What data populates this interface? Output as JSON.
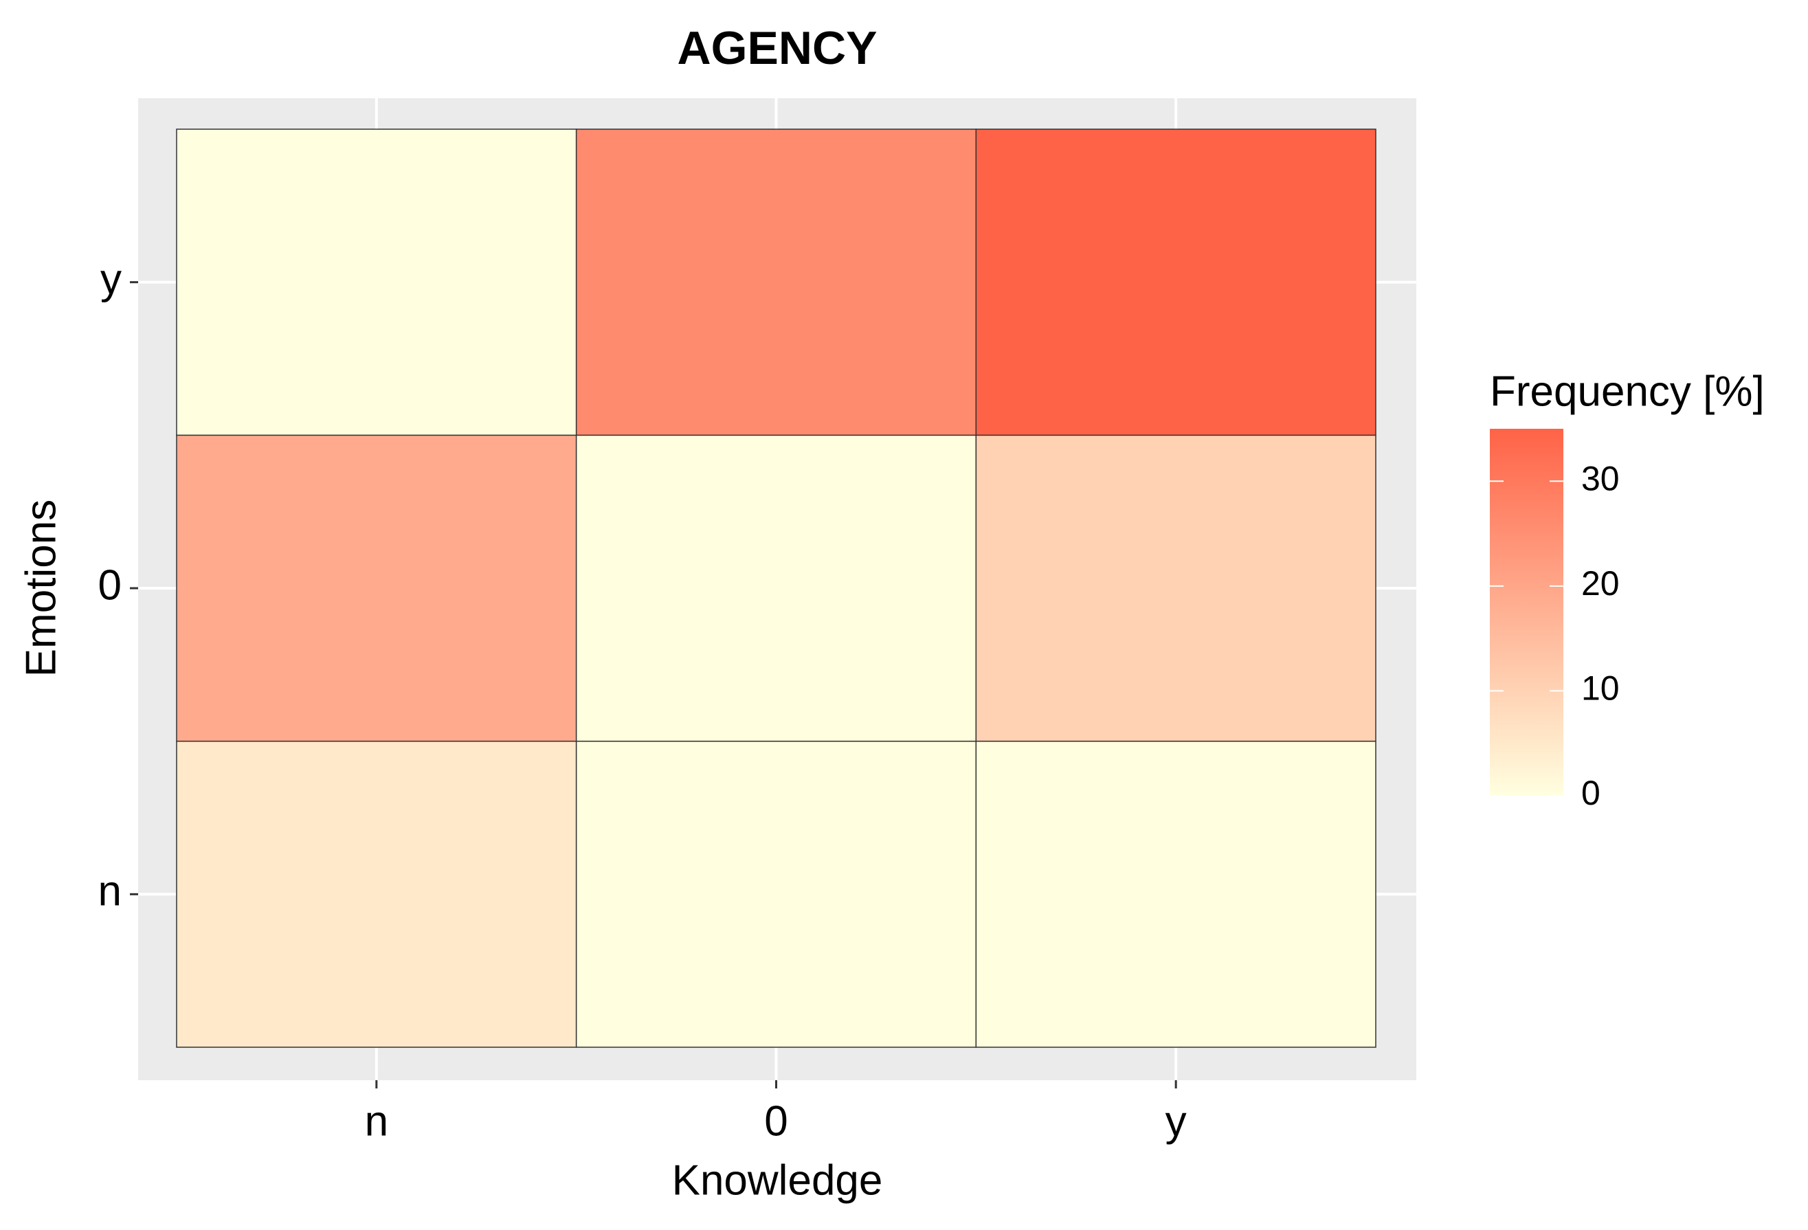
{
  "chart_data": {
    "type": "heatmap",
    "title": "AGENCY",
    "x_label": "Knowledge",
    "y_label": "Emotions",
    "x_categories": [
      "n",
      "0",
      "y"
    ],
    "y_categories": [
      "n",
      "0",
      "y"
    ],
    "values": [
      [
        5,
        0,
        0
      ],
      [
        19,
        0,
        10
      ],
      [
        0,
        26,
        35
      ]
    ],
    "legend_title": "Frequency [%]",
    "color_low": "#ffffe0",
    "color_high": "#ff6347",
    "clim": [
      0,
      35
    ],
    "cticks": [
      0,
      10,
      20,
      30
    ],
    "grid": true
  }
}
